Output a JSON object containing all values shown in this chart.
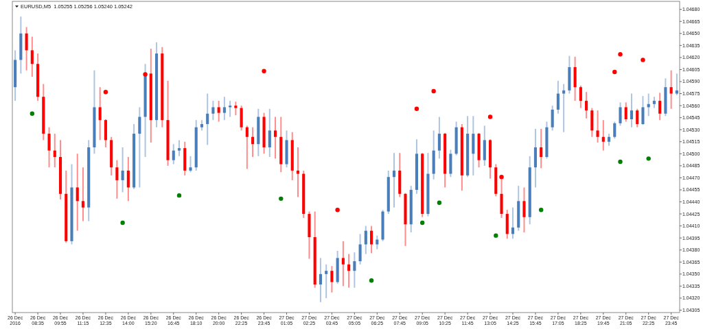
{
  "chart_data": {
    "type": "candlestick",
    "title": "EURUSD,M5  1.05255 1.05256 1.05240 1.05242",
    "marker": "circle",
    "categories": [
      "26 Dec 2016",
      null,
      null,
      null,
      "26 Dec 08:35",
      null,
      null,
      null,
      "26 Dec 09:55",
      null,
      null,
      null,
      "26 Dec 11:15",
      null,
      null,
      null,
      "26 Dec 12:35",
      null,
      null,
      null,
      "26 Dec 14:00",
      null,
      null,
      null,
      "26 Dec 15:20",
      null,
      null,
      null,
      "26 Dec 16:45",
      null,
      null,
      null,
      "26 Dec 18:10",
      null,
      null,
      null,
      "26 Dec 20:00",
      null,
      null,
      null,
      "26 Dec 22:25",
      null,
      null,
      null,
      "26 Dec 23:45",
      null,
      null,
      null,
      "27 Dec 01:05",
      null,
      null,
      null,
      "27 Dec 02:25",
      null,
      null,
      null,
      "27 Dec 03:45",
      null,
      null,
      null,
      "27 Dec 05:05",
      null,
      null,
      null,
      "27 Dec 06:25",
      null,
      null,
      null,
      "27 Dec 07:45",
      null,
      null,
      null,
      "27 Dec 09:05",
      null,
      null,
      null,
      "27 Dec 10:25",
      null,
      null,
      null,
      "27 Dec 11:45",
      null,
      null,
      null,
      "27 Dec 13:05",
      null,
      null,
      null,
      "27 Dec 14:25",
      null,
      null,
      null,
      "27 Dec 15:45",
      null,
      null,
      null,
      "27 Dec 17:05",
      null,
      null,
      null,
      "27 Dec 18:25",
      null,
      null,
      null,
      "27 Dec 19:45",
      null,
      null,
      null,
      "27 Dec 21:05",
      null,
      null,
      null,
      "27 Dec 22:25",
      null,
      null,
      null,
      "27 Dec 23:45",
      null
    ],
    "ylim": [
      1.04302,
      1.0469
    ],
    "yticks": [
      {
        "value": 1.04305,
        "label": "1.04305"
      },
      {
        "value": 1.0432,
        "label": "1.04320"
      },
      {
        "value": 1.04335,
        "label": "1.04335"
      },
      {
        "value": 1.0435,
        "label": "1.04350"
      },
      {
        "value": 1.04365,
        "label": "1.04365"
      },
      {
        "value": 1.0438,
        "label": "1.04380"
      },
      {
        "value": 1.04395,
        "label": "1.04395"
      },
      {
        "value": 1.0441,
        "label": "1.04410"
      },
      {
        "value": 1.04425,
        "label": "1.04425"
      },
      {
        "value": 1.0444,
        "label": "1.04440"
      },
      {
        "value": 1.04455,
        "label": "1.04455"
      },
      {
        "value": 1.0447,
        "label": "1.04470"
      },
      {
        "value": 1.04485,
        "label": "1.04485"
      },
      {
        "value": 1.045,
        "label": "1.04500"
      },
      {
        "value": 1.04515,
        "label": "1.04515"
      },
      {
        "value": 1.0453,
        "label": "1.04530"
      },
      {
        "value": 1.04545,
        "label": "1.04545"
      },
      {
        "value": 1.0456,
        "label": "1.04560"
      },
      {
        "value": 1.04575,
        "label": "1.04575"
      },
      {
        "value": 1.0459,
        "label": "1.04590"
      },
      {
        "value": 1.04605,
        "label": "1.04605"
      },
      {
        "value": 1.0462,
        "label": "1.04620"
      },
      {
        "value": 1.04635,
        "label": "1.04635"
      },
      {
        "value": 1.0465,
        "label": "1.04650"
      },
      {
        "value": 1.04665,
        "label": "1.04665"
      },
      {
        "value": 1.0468,
        "label": "1.04680"
      }
    ],
    "series": [
      {
        "type": "candlestick",
        "ohlc": [
          [
            1.04583,
            1.04629,
            1.04566,
            1.04617
          ],
          [
            1.04617,
            1.04671,
            1.046,
            1.0465
          ],
          [
            1.0465,
            1.04658,
            1.04604,
            1.04629
          ],
          [
            1.04629,
            1.04646,
            1.04596,
            1.04612
          ],
          [
            1.04612,
            1.04625,
            1.04566,
            1.04571
          ],
          [
            1.04571,
            1.04587,
            1.04517,
            1.04525
          ],
          [
            1.04525,
            1.04533,
            1.04483,
            1.04504
          ],
          [
            1.04504,
            1.04525,
            1.04483,
            1.04496
          ],
          [
            1.04496,
            1.04517,
            1.04443,
            1.0445
          ],
          [
            1.0445,
            1.04479,
            1.04389,
            1.04391
          ],
          [
            1.04391,
            1.04487,
            1.04387,
            1.04458
          ],
          [
            1.04458,
            1.045,
            1.04404,
            1.04441
          ],
          [
            1.04441,
            1.04483,
            1.04416,
            1.04433
          ],
          [
            1.04433,
            1.04517,
            1.04416,
            1.04508
          ],
          [
            1.04508,
            1.04604,
            1.045,
            1.04558
          ],
          [
            1.04558,
            1.04583,
            1.04517,
            1.04542
          ],
          [
            1.04542,
            1.04543,
            1.04508,
            1.04517
          ],
          [
            1.04517,
            1.04521,
            1.04473,
            1.04483
          ],
          [
            1.04483,
            1.04492,
            1.04444,
            1.04467
          ],
          [
            1.04467,
            1.04508,
            1.04452,
            1.04479
          ],
          [
            1.04479,
            1.04496,
            1.04441,
            1.04458
          ],
          [
            1.04458,
            1.04537,
            1.04456,
            1.04525
          ],
          [
            1.04525,
            1.04558,
            1.04458,
            1.04546
          ],
          [
            1.04546,
            1.04612,
            1.04496,
            1.046
          ],
          [
            1.046,
            1.04631,
            1.04514,
            1.04542
          ],
          [
            1.04542,
            1.04639,
            1.04533,
            1.04625
          ],
          [
            1.04625,
            1.04633,
            1.04533,
            1.04542
          ],
          [
            1.04542,
            1.04591,
            1.04485,
            1.04492
          ],
          [
            1.04492,
            1.04512,
            1.04487,
            1.04504
          ],
          [
            1.04504,
            1.04517,
            1.04497,
            1.04507
          ],
          [
            1.04507,
            1.04515,
            1.04473,
            1.04479
          ],
          [
            1.04479,
            1.04497,
            1.04477,
            1.04483
          ],
          [
            1.04483,
            1.04542,
            1.04479,
            1.04533
          ],
          [
            1.04533,
            1.04542,
            1.04529,
            1.04537
          ],
          [
            1.04537,
            1.04575,
            1.04511,
            1.0455
          ],
          [
            1.0455,
            1.04566,
            1.04542,
            1.04558
          ],
          [
            1.04558,
            1.04566,
            1.0454,
            1.04551
          ],
          [
            1.04551,
            1.04571,
            1.04542,
            1.04558
          ],
          [
            1.04558,
            1.04566,
            1.04546,
            1.0456
          ],
          [
            1.0456,
            1.04565,
            1.04548,
            1.04557
          ],
          [
            1.04557,
            1.0456,
            1.04529,
            1.04533
          ],
          [
            1.04533,
            1.04535,
            1.04481,
            1.04521
          ],
          [
            1.04521,
            1.04533,
            1.04496,
            1.04512
          ],
          [
            1.04512,
            1.04556,
            1.04497,
            1.04546
          ],
          [
            1.04546,
            1.04551,
            1.045,
            1.04508
          ],
          [
            1.04508,
            1.04556,
            1.04496,
            1.04529
          ],
          [
            1.04529,
            1.04546,
            1.04494,
            1.04521
          ],
          [
            1.04521,
            1.04546,
            1.04477,
            1.04487
          ],
          [
            1.04487,
            1.04529,
            1.04483,
            1.04517
          ],
          [
            1.04517,
            1.04527,
            1.04467,
            1.04479
          ],
          [
            1.04479,
            1.04508,
            1.04446,
            1.04475
          ],
          [
            1.04475,
            1.04479,
            1.0442,
            1.04425
          ],
          [
            1.04425,
            1.04428,
            1.04369,
            1.04396
          ],
          [
            1.04396,
            1.04428,
            1.04333,
            1.04337
          ],
          [
            1.04337,
            1.0437,
            1.04315,
            1.0435
          ],
          [
            1.0435,
            1.04362,
            1.0432,
            1.04354
          ],
          [
            1.04354,
            1.0436,
            1.04327,
            1.0434
          ],
          [
            1.0434,
            1.04379,
            1.04338,
            1.0437
          ],
          [
            1.0437,
            1.04391,
            1.04335,
            1.04362
          ],
          [
            1.04362,
            1.04375,
            1.04333,
            1.04354
          ],
          [
            1.04354,
            1.04377,
            1.04333,
            1.04366
          ],
          [
            1.04366,
            1.044,
            1.04362,
            1.04387
          ],
          [
            1.04387,
            1.0441,
            1.04375,
            1.04404
          ],
          [
            1.04404,
            1.0441,
            1.04376,
            1.04387
          ],
          [
            1.04387,
            1.04398,
            1.04381,
            1.04393
          ],
          [
            1.04393,
            1.0443,
            1.04391,
            1.04428
          ],
          [
            1.04428,
            1.04479,
            1.04425,
            1.04471
          ],
          [
            1.04471,
            1.04501,
            1.04433,
            1.04479
          ],
          [
            1.04479,
            1.04501,
            1.04446,
            1.0445
          ],
          [
            1.0445,
            1.04451,
            1.04385,
            1.04412
          ],
          [
            1.04412,
            1.0446,
            1.04402,
            1.04455
          ],
          [
            1.04455,
            1.04518,
            1.0445,
            1.045
          ],
          [
            1.045,
            1.04501,
            1.04421,
            1.04425
          ],
          [
            1.04425,
            1.04501,
            1.04422,
            1.04475
          ],
          [
            1.04475,
            1.04529,
            1.04468,
            1.04504
          ],
          [
            1.04504,
            1.04546,
            1.04494,
            1.04525
          ],
          [
            1.04525,
            1.04526,
            1.04458,
            1.04475
          ],
          [
            1.04475,
            1.04505,
            1.04471,
            1.045
          ],
          [
            1.045,
            1.0454,
            1.04498,
            1.04533
          ],
          [
            1.04533,
            1.04537,
            1.04454,
            1.04473
          ],
          [
            1.04473,
            1.04547,
            1.04471,
            1.04525
          ],
          [
            1.045,
            1.04547,
            1.04473,
            1.04525
          ],
          [
            1.04525,
            1.04526,
            1.04483,
            1.04492
          ],
          [
            1.04492,
            1.04535,
            1.04485,
            1.04517
          ],
          [
            1.04517,
            1.04518,
            1.04469,
            1.04483
          ],
          [
            1.04483,
            1.04487,
            1.04447,
            1.0445
          ],
          [
            1.0445,
            1.04468,
            1.0442,
            1.04425
          ],
          [
            1.04425,
            1.0443,
            1.04394,
            1.044
          ],
          [
            1.044,
            1.04433,
            1.04394,
            1.04408
          ],
          [
            1.04408,
            1.0446,
            1.04404,
            1.04441
          ],
          [
            1.04441,
            1.04458,
            1.04402,
            1.04421
          ],
          [
            1.04421,
            1.04497,
            1.04412,
            1.04483
          ],
          [
            1.04483,
            1.04531,
            1.04458,
            1.04508
          ],
          [
            1.04508,
            1.04531,
            1.04482,
            1.04496
          ],
          [
            1.04496,
            1.0454,
            1.04494,
            1.04533
          ],
          [
            1.04533,
            1.0456,
            1.04529,
            1.04555
          ],
          [
            1.04555,
            1.04591,
            1.0455,
            1.04575
          ],
          [
            1.04575,
            1.04587,
            1.04527,
            1.04579
          ],
          [
            1.04579,
            1.04622,
            1.04575,
            1.04608
          ],
          [
            1.04608,
            1.04621,
            1.04566,
            1.04583
          ],
          [
            1.04583,
            1.04585,
            1.04557,
            1.04566
          ],
          [
            1.04566,
            1.04577,
            1.04544,
            1.04554
          ],
          [
            1.04554,
            1.04557,
            1.04521,
            1.04529
          ],
          [
            1.04529,
            1.04554,
            1.04514,
            1.04521
          ],
          [
            1.04521,
            1.04542,
            1.04504,
            1.04515
          ],
          [
            1.04515,
            1.04525,
            1.0451,
            1.04521
          ],
          [
            1.04521,
            1.0454,
            1.04519,
            1.04538
          ],
          [
            1.04538,
            1.04564,
            1.04535,
            1.04558
          ],
          [
            1.04558,
            1.04564,
            1.0454,
            1.04543
          ],
          [
            1.04543,
            1.04575,
            1.04533,
            1.04554
          ],
          [
            1.04554,
            1.04556,
            1.04533,
            1.04537
          ],
          [
            1.04537,
            1.04572,
            1.04536,
            1.04558
          ],
          [
            1.04558,
            1.04575,
            1.04547,
            1.04562
          ],
          [
            1.04562,
            1.04571,
            1.04557,
            1.04566
          ],
          [
            1.04566,
            1.04576,
            1.04542,
            1.0455
          ],
          [
            1.0455,
            1.04594,
            1.04547,
            1.04583
          ],
          [
            1.04583,
            1.04604,
            1.04556,
            1.04575
          ],
          [
            1.04575,
            1.046,
            1.04573,
            1.04579
          ]
        ],
        "colors": [
          "#4a7ebb",
          "#4a7ebb",
          "#ff0000",
          "#ff0000",
          "#ff0000",
          "#ff0000",
          "#ff0000",
          "#ff0000",
          "#ff0000",
          "#ff0000",
          "#4a7ebb",
          "#ff0000",
          "#ff0000",
          "#4a7ebb",
          "#4a7ebb",
          "#ff0000",
          "#ff0000",
          "#ff0000",
          "#ff0000",
          "#4a7ebb",
          "#ff0000",
          "#4a7ebb",
          "#4a7ebb",
          "#4a7ebb",
          "#ff0000",
          "#4a7ebb",
          "#ff0000",
          "#ff0000",
          "#4a7ebb",
          "#4a7ebb",
          "#ff0000",
          "#4a7ebb",
          "#4a7ebb",
          "#4a7ebb",
          "#4a7ebb",
          "#4a7ebb",
          "#ff0000",
          "#4a7ebb",
          "#4a7ebb",
          "#ff0000",
          "#ff0000",
          "#ff0000",
          "#ff0000",
          "#4a7ebb",
          "#ff0000",
          "#4a7ebb",
          "#ff0000",
          "#ff0000",
          "#4a7ebb",
          "#ff0000",
          "#ff0000",
          "#ff0000",
          "#ff0000",
          "#ff0000",
          "#4a7ebb",
          "#4a7ebb",
          "#ff0000",
          "#4a7ebb",
          "#ff0000",
          "#ff0000",
          "#4a7ebb",
          "#4a7ebb",
          "#4a7ebb",
          "#ff0000",
          "#4a7ebb",
          "#4a7ebb",
          "#4a7ebb",
          "#4a7ebb",
          "#ff0000",
          "#ff0000",
          "#4a7ebb",
          "#4a7ebb",
          "#ff0000",
          "#4a7ebb",
          "#4a7ebb",
          "#4a7ebb",
          "#ff0000",
          "#4a7ebb",
          "#4a7ebb",
          "#ff0000",
          "#4a7ebb",
          "#4a7ebb",
          "#ff0000",
          "#4a7ebb",
          "#ff0000",
          "#ff0000",
          "#ff0000",
          "#ff0000",
          "#4a7ebb",
          "#4a7ebb",
          "#ff0000",
          "#4a7ebb",
          "#4a7ebb",
          "#ff0000",
          "#4a7ebb",
          "#4a7ebb",
          "#4a7ebb",
          "#4a7ebb",
          "#4a7ebb",
          "#ff0000",
          "#ff0000",
          "#ff0000",
          "#ff0000",
          "#ff0000",
          "#ff0000",
          "#4a7ebb",
          "#4a7ebb",
          "#4a7ebb",
          "#ff0000",
          "#4a7ebb",
          "#ff0000",
          "#4a7ebb",
          "#4a7ebb",
          "#4a7ebb",
          "#ff0000",
          "#4a7ebb",
          "#ff0000",
          "#4a7ebb"
        ]
      },
      {
        "type": "scatter",
        "color": "#ff0000",
        "values": [
          null,
          null,
          null,
          null,
          null,
          null,
          null,
          null,
          null,
          null,
          null,
          null,
          null,
          null,
          null,
          null,
          1.04577,
          null,
          null,
          null,
          null,
          null,
          null,
          1.04599,
          null,
          null,
          null,
          null,
          null,
          null,
          null,
          null,
          null,
          null,
          null,
          null,
          null,
          null,
          null,
          null,
          null,
          null,
          null,
          null,
          1.04603,
          null,
          null,
          null,
          null,
          null,
          null,
          null,
          null,
          null,
          null,
          null,
          null,
          1.0443,
          null,
          null,
          null,
          null,
          null,
          null,
          null,
          null,
          null,
          null,
          null,
          null,
          null,
          1.04556,
          null,
          null,
          1.04578,
          null,
          null,
          null,
          null,
          null,
          null,
          null,
          null,
          null,
          1.04546,
          null,
          1.04471,
          null,
          null,
          null,
          null,
          null,
          null,
          null,
          null,
          null,
          null,
          null,
          null,
          null,
          null,
          null,
          null,
          null,
          null,
          null,
          1.04602,
          1.04624,
          null,
          null,
          null,
          1.04617,
          null,
          null,
          null,
          null,
          null,
          null
        ]
      },
      {
        "type": "scatter",
        "color": "#008000",
        "values": [
          null,
          null,
          null,
          1.0455,
          null,
          null,
          null,
          null,
          null,
          null,
          null,
          null,
          null,
          null,
          null,
          null,
          null,
          null,
          null,
          1.04414,
          null,
          null,
          null,
          null,
          null,
          null,
          null,
          null,
          null,
          1.04448,
          null,
          null,
          null,
          null,
          null,
          null,
          null,
          null,
          null,
          null,
          null,
          null,
          null,
          null,
          null,
          null,
          null,
          1.04444,
          null,
          null,
          null,
          null,
          null,
          null,
          null,
          null,
          null,
          null,
          null,
          null,
          null,
          null,
          null,
          1.04342,
          null,
          null,
          null,
          null,
          null,
          null,
          null,
          null,
          1.04414,
          null,
          null,
          1.04439,
          null,
          null,
          null,
          null,
          null,
          null,
          null,
          null,
          null,
          1.04398,
          null,
          null,
          null,
          null,
          null,
          null,
          null,
          1.0443,
          null,
          null,
          null,
          null,
          null,
          null,
          null,
          null,
          null,
          null,
          null,
          null,
          null,
          1.0449,
          null,
          null,
          null,
          null,
          1.04494,
          null,
          null,
          null,
          null,
          null
        ]
      }
    ]
  }
}
